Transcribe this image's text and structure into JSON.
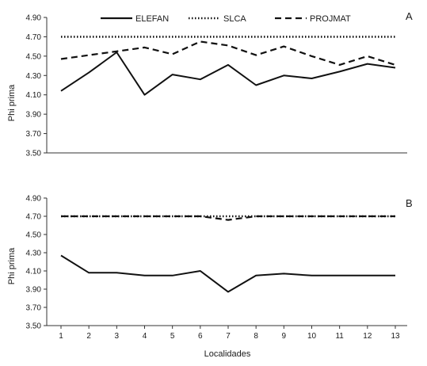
{
  "chart_data": [
    {
      "type": "line",
      "panel_label": "A",
      "ylabel": "Phi prima",
      "xlabel": "",
      "ylim": [
        3.5,
        4.9
      ],
      "yticks": [
        "3.50",
        "3.70",
        "3.90",
        "4.10",
        "4.30",
        "4.50",
        "4.70",
        "4.90"
      ],
      "x": [
        1,
        2,
        3,
        4,
        5,
        6,
        7,
        8,
        9,
        10,
        11,
        12,
        13
      ],
      "show_xticks": false,
      "legend": "top",
      "series": [
        {
          "name": "ELEFAN",
          "style": "solid",
          "values": [
            4.14,
            4.33,
            4.54,
            4.1,
            4.31,
            4.26,
            4.41,
            4.2,
            4.3,
            4.27,
            4.34,
            4.42,
            4.38
          ]
        },
        {
          "name": "SLCA",
          "style": "dotted",
          "values": [
            4.7,
            4.7,
            4.7,
            4.7,
            4.7,
            4.7,
            4.7,
            4.7,
            4.7,
            4.7,
            4.7,
            4.7,
            4.7
          ]
        },
        {
          "name": "PROJMAT",
          "style": "dashed",
          "values": [
            4.47,
            4.51,
            4.55,
            4.59,
            4.52,
            4.65,
            4.61,
            4.51,
            4.6,
            4.5,
            4.41,
            4.5,
            4.41
          ]
        }
      ]
    },
    {
      "type": "line",
      "panel_label": "B",
      "ylabel": "Phi prima",
      "xlabel": "Localidades",
      "ylim": [
        3.5,
        4.9
      ],
      "yticks": [
        "3.50",
        "3.70",
        "3.90",
        "4.10",
        "4.30",
        "4.50",
        "4.70",
        "4.90"
      ],
      "x": [
        1,
        2,
        3,
        4,
        5,
        6,
        7,
        8,
        9,
        10,
        11,
        12,
        13
      ],
      "xticks": [
        "1",
        "2",
        "3",
        "4",
        "5",
        "6",
        "7",
        "8",
        "9",
        "10",
        "11",
        "12",
        "13"
      ],
      "show_xticks": true,
      "series": [
        {
          "name": "ELEFAN",
          "style": "solid",
          "values": [
            4.27,
            4.08,
            4.08,
            4.05,
            4.05,
            4.1,
            3.87,
            4.05,
            4.07,
            4.05,
            4.05,
            4.05,
            4.05
          ]
        },
        {
          "name": "SLCA",
          "style": "dotted",
          "values": [
            4.7,
            4.7,
            4.7,
            4.7,
            4.7,
            4.7,
            4.7,
            4.7,
            4.7,
            4.7,
            4.7,
            4.7,
            4.7
          ]
        },
        {
          "name": "PROJMAT",
          "style": "dashed",
          "values": [
            4.7,
            4.7,
            4.7,
            4.7,
            4.7,
            4.7,
            4.66,
            4.7,
            4.7,
            4.7,
            4.7,
            4.7,
            4.7
          ]
        }
      ]
    }
  ]
}
